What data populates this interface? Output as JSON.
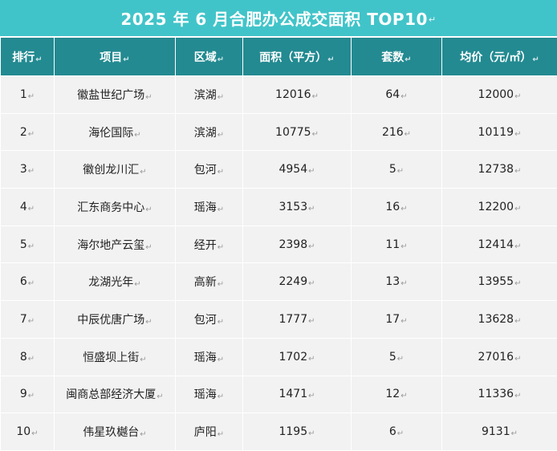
{
  "title": "2025 年 6 月合肥办公成交面积 TOP10",
  "mark": "↵",
  "columns": [
    "排行",
    "项目",
    "区域",
    "面积（平方）",
    "套数",
    "均价（元/㎡）"
  ],
  "rows": [
    {
      "rank": "1",
      "project": "徽盐世纪广场",
      "area": "滨湖",
      "size": "12016",
      "units": "64",
      "price": "12000"
    },
    {
      "rank": "2",
      "project": "海伦国际",
      "area": "滨湖",
      "size": "10775",
      "units": "216",
      "price": "10119"
    },
    {
      "rank": "3",
      "project": "徽创龙川汇",
      "area": "包河",
      "size": "4954",
      "units": "5",
      "price": "12738"
    },
    {
      "rank": "4",
      "project": "汇东商务中心",
      "area": "瑶海",
      "size": "3153",
      "units": "16",
      "price": "12200"
    },
    {
      "rank": "5",
      "project": "海尔地产云玺",
      "area": "经开",
      "size": "2398",
      "units": "11",
      "price": "12414"
    },
    {
      "rank": "6",
      "project": "龙湖光年",
      "area": "高新",
      "size": "2249",
      "units": "13",
      "price": "13955"
    },
    {
      "rank": "7",
      "project": "中辰优唐广场",
      "area": "包河",
      "size": "1777",
      "units": "17",
      "price": "13628"
    },
    {
      "rank": "8",
      "project": "恒盛坝上街",
      "area": "瑶海",
      "size": "1702",
      "units": "5",
      "price": "27016"
    },
    {
      "rank": "9",
      "project": "闽商总部经济大厦",
      "area": "瑶海",
      "size": "1471",
      "units": "12",
      "price": "11336"
    },
    {
      "rank": "10",
      "project": "伟星玖樾台",
      "area": "庐阳",
      "size": "1195",
      "units": "6",
      "price": "9131"
    }
  ]
}
